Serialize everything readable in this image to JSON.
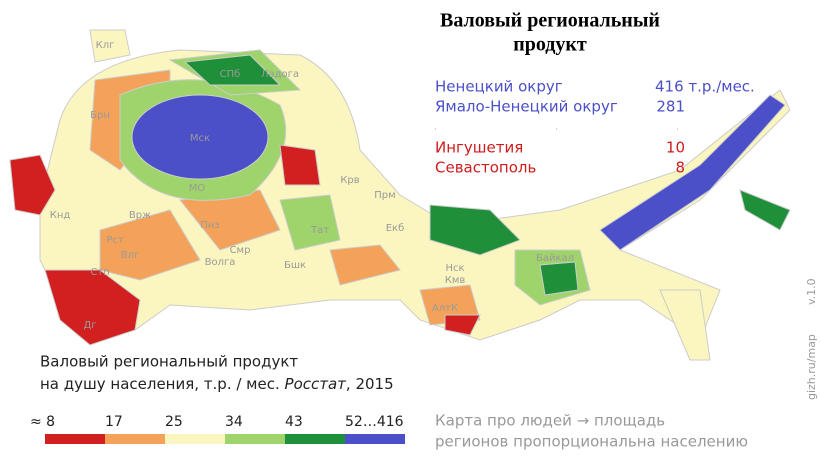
{
  "title": [
    "Валовый региональный",
    "продукт"
  ],
  "highlights": [
    {
      "name": "Ненецкий округ",
      "value": "416 т.р./мес.",
      "color": "#4b4fc8"
    },
    {
      "name": "Ямало-Ненецкий округ",
      "value": "281",
      "color": "#4b4fc8"
    },
    {
      "name": "Ингушетия",
      "value": "10",
      "color": "#d01c1c"
    },
    {
      "name": "Севастополь",
      "value": "8",
      "color": "#d01c1c"
    }
  ],
  "map_labels": [
    "Клг",
    "СПб",
    "Ладога",
    "Мск",
    "МО",
    "Брн",
    "Кнд",
    "Врж",
    "Рст",
    "Влг",
    "Пнз",
    "Смр",
    "Волга",
    "Стп",
    "Дг",
    "Бшк",
    "Прм",
    "Екб",
    "Кмв",
    "Нск",
    "АлтК",
    "Байкал",
    "Тат",
    "Крв"
  ],
  "caption": {
    "line1": "Валовый региональный продукт",
    "line2": "на душу населения, т.р. / мес.",
    "source": "Росстат",
    "year": ", 2015"
  },
  "legend": [
    {
      "label": "≈ 8",
      "color": "#d21f1f"
    },
    {
      "label": "17",
      "color": "#f4a25a"
    },
    {
      "label": "25",
      "color": "#fbf6bf"
    },
    {
      "label": "34",
      "color": "#9fd36b"
    },
    {
      "label": "43",
      "color": "#1f8f3a"
    },
    {
      "label": "52…416",
      "color": "#4b4fc8"
    }
  ],
  "note": [
    "Карта про людей → площадь",
    "регионов пропорциональна населению"
  ],
  "site": "gizh.ru/map",
  "version": "v.1.0"
}
